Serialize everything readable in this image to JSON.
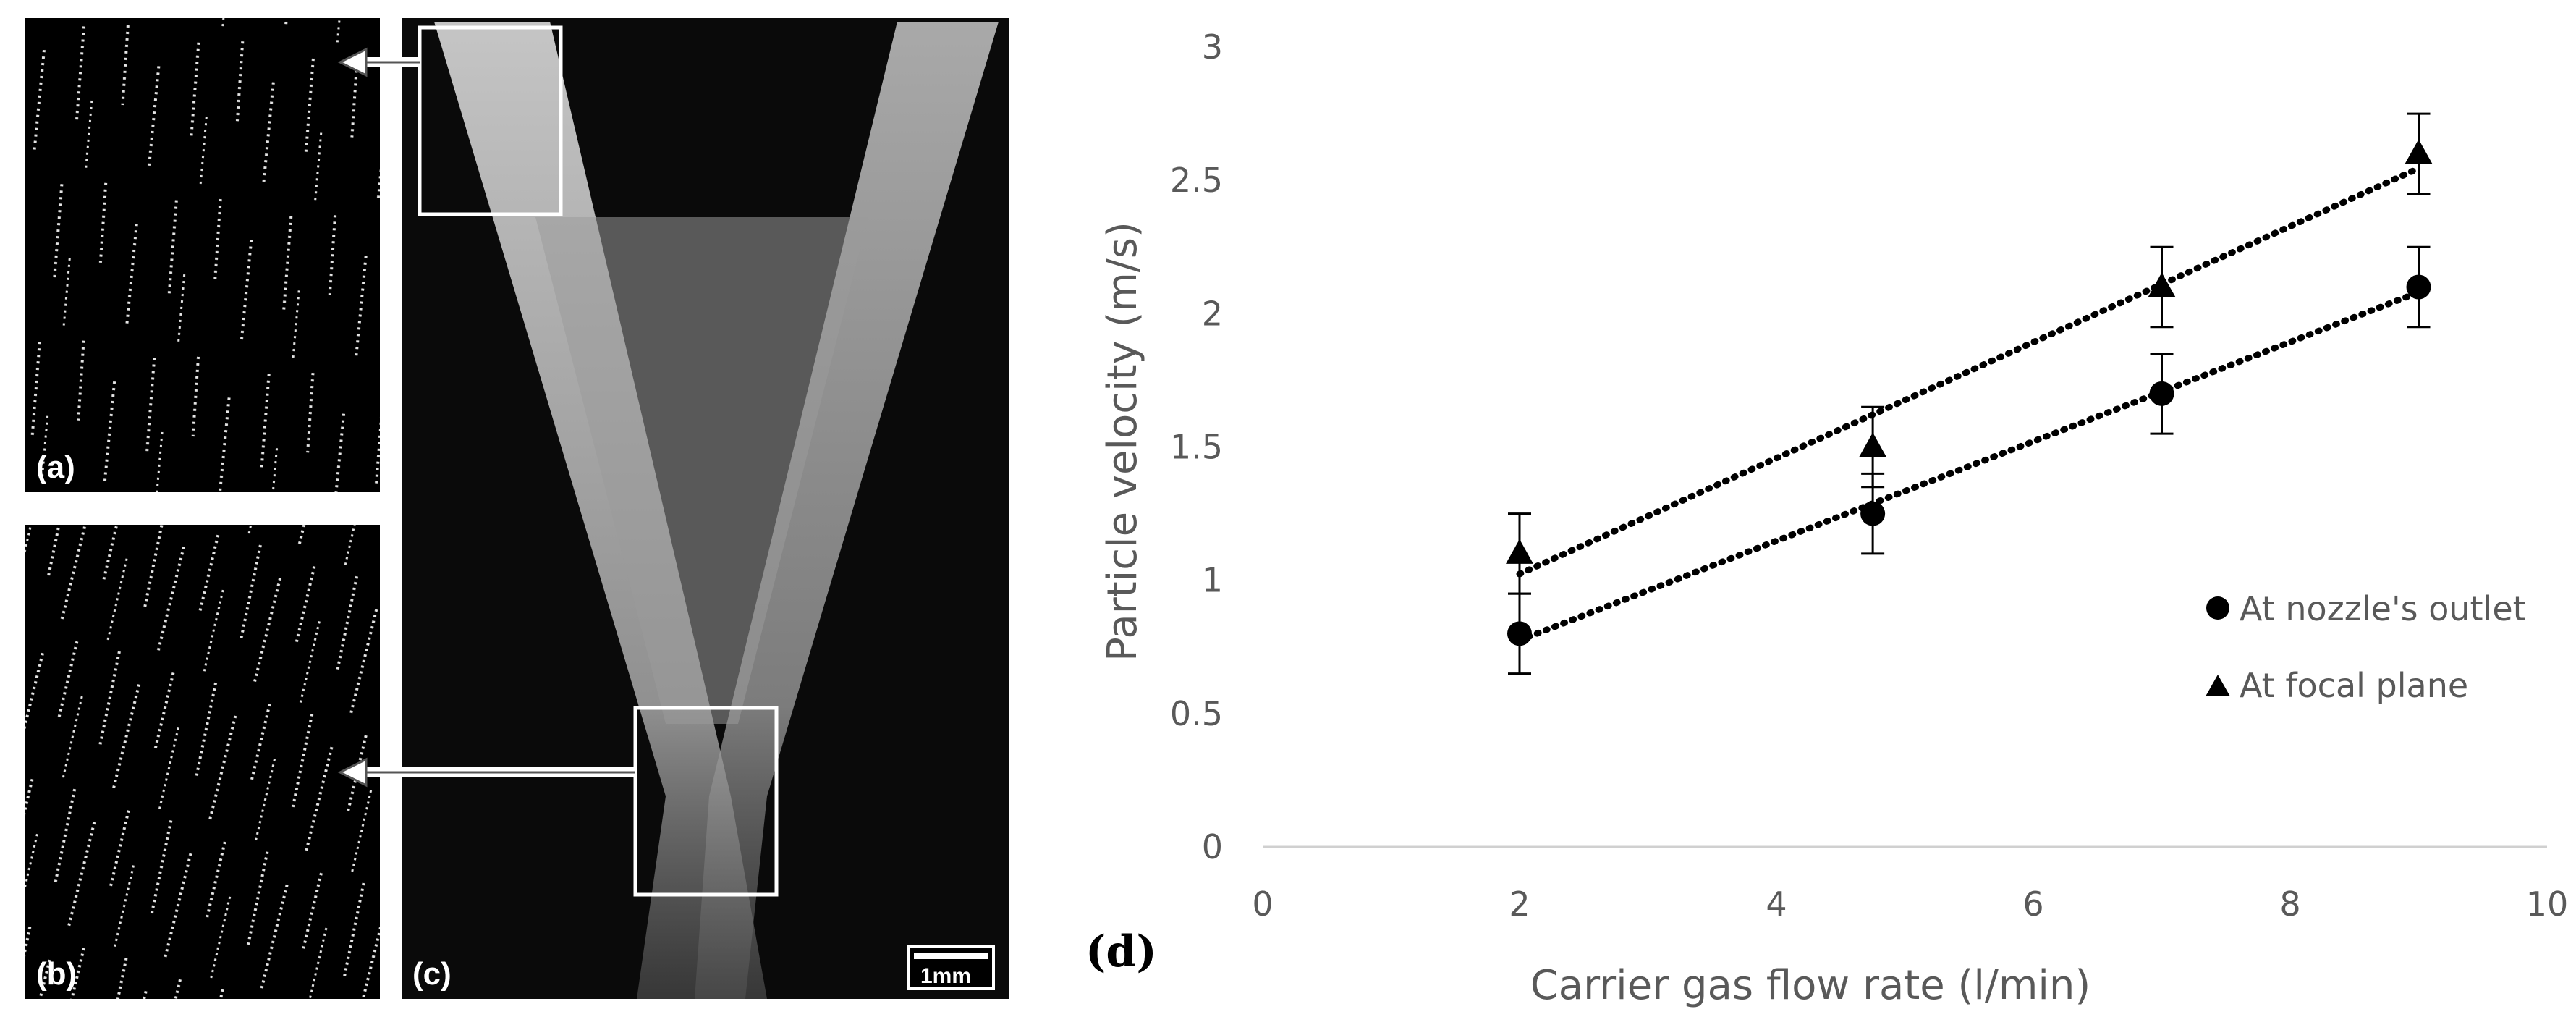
{
  "panels": {
    "a_label": "(a)",
    "b_label": "(b)",
    "c_label": "(c)",
    "d_label": "(d)",
    "scale_bar": "1mm"
  },
  "chart_data": {
    "type": "scatter",
    "xlabel": "Carrier gas flow rate (l/min)",
    "ylabel": "Particle velocity (m/s)",
    "xlim": [
      0,
      10
    ],
    "ylim": [
      0,
      3
    ],
    "xticks": [
      0,
      2,
      4,
      6,
      8,
      10
    ],
    "yticks": [
      0,
      0.5,
      1,
      1.5,
      2,
      2.5,
      3
    ],
    "grid": false,
    "legend_position": "right",
    "trendline": "linear, dotted",
    "series": [
      {
        "name": "At nozzle's outlet",
        "marker": "circle",
        "color": "#000000",
        "x": [
          2,
          4.75,
          7,
          9
        ],
        "y": [
          0.8,
          1.25,
          1.7,
          2.1
        ],
        "error": [
          0.15,
          0.15,
          0.15,
          0.15
        ]
      },
      {
        "name": "At focal plane",
        "marker": "triangle",
        "color": "#000000",
        "x": [
          2,
          4.75,
          7,
          9
        ],
        "y": [
          1.1,
          1.5,
          2.1,
          2.6
        ],
        "error": [
          0.15,
          0.15,
          0.15,
          0.15
        ]
      }
    ]
  }
}
